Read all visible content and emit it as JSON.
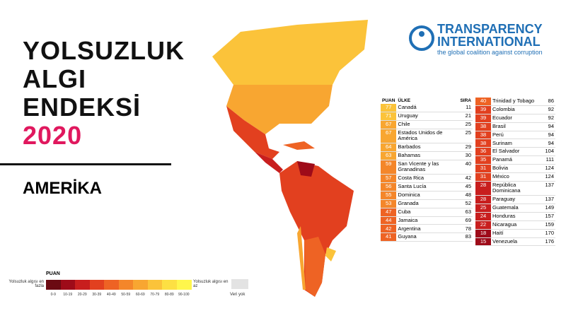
{
  "header": {
    "title_lines": [
      "YOLSUZLUK",
      "ALGI",
      "ENDEKSİ"
    ],
    "year": "2020",
    "region": "AMERİKA"
  },
  "logo": {
    "name_line1": "TRANSPARENCY",
    "name_line2": "INTERNATIONAL",
    "tagline": "the global coalition against corruption"
  },
  "table": {
    "columns": [
      "PUAN",
      "ÜLKE",
      "SIRA"
    ],
    "left_rows": [
      [
        77,
        "Canadá",
        11
      ],
      [
        71,
        "Uruguay",
        21
      ],
      [
        67,
        "Chile",
        25
      ],
      [
        67,
        "Estados Unidos de América",
        25
      ],
      [
        64,
        "Barbados",
        29
      ],
      [
        63,
        "Bahamas",
        30
      ],
      [
        59,
        "San Vicente y las Granadinas",
        40
      ],
      [
        57,
        "Costa Rica",
        42
      ],
      [
        56,
        "Santa Lucía",
        45
      ],
      [
        55,
        "Dominica",
        48
      ],
      [
        53,
        "Granada",
        52
      ],
      [
        47,
        "Cuba",
        63
      ],
      [
        44,
        "Jamaica",
        69
      ],
      [
        42,
        "Argentina",
        78
      ],
      [
        41,
        "Guyana",
        83
      ]
    ],
    "right_rows": [
      [
        40,
        "Trinidad y Tobago",
        86
      ],
      [
        39,
        "Colombia",
        92
      ],
      [
        39,
        "Ecuador",
        92
      ],
      [
        38,
        "Brasil",
        94
      ],
      [
        38,
        "Perú",
        94
      ],
      [
        38,
        "Surinam",
        94
      ],
      [
        36,
        "El Salvador",
        104
      ],
      [
        35,
        "Panamá",
        111
      ],
      [
        31,
        "Bolivia",
        124
      ],
      [
        31,
        "México",
        124
      ],
      [
        28,
        "República Dominicana",
        137
      ],
      [
        28,
        "Paraguay",
        137
      ],
      [
        25,
        "Guatemala",
        149
      ],
      [
        24,
        "Honduras",
        157
      ],
      [
        22,
        "Nicaragua",
        159
      ],
      [
        18,
        "Haití",
        170
      ],
      [
        15,
        "Venezuela",
        176
      ]
    ]
  },
  "legend": {
    "title": "PUAN",
    "low_label": "Yolsuzluk algısı en fazla",
    "high_label": "Yolsuzluk algısı en az",
    "bins": [
      "0-9",
      "10-19",
      "20-29",
      "30-39",
      "40-49",
      "50-59",
      "60-69",
      "70-79",
      "80-89",
      "90-100"
    ],
    "colors": [
      "#6b0a12",
      "#9e0b19",
      "#c81e1e",
      "#e2401f",
      "#ee6324",
      "#f4862a",
      "#f8a631",
      "#fbc33a",
      "#fde043",
      "#fff64c"
    ],
    "no_data": "Veri yok"
  }
}
